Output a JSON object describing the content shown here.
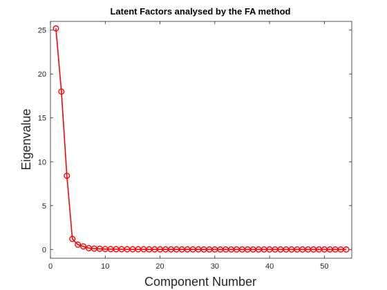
{
  "chart_data": {
    "type": "line",
    "title": "Latent Factors analysed by the FA method",
    "xlabel": "Component Number",
    "ylabel": "Eigenvalue",
    "xlim": [
      0,
      55
    ],
    "ylim": [
      -1,
      26
    ],
    "xticks": [
      0,
      10,
      20,
      30,
      40,
      50
    ],
    "yticks": [
      0,
      5,
      10,
      15,
      20,
      25
    ],
    "grid": false,
    "legend": "none",
    "series": [
      {
        "color": "#ff0000",
        "marker": "circle",
        "x": [
          1,
          2,
          3,
          4,
          5,
          6,
          7,
          8,
          9,
          10,
          11,
          12,
          13,
          14,
          15,
          16,
          17,
          18,
          19,
          20,
          21,
          22,
          23,
          24,
          25,
          26,
          27,
          28,
          29,
          30,
          31,
          32,
          33,
          34,
          35,
          36,
          37,
          38,
          39,
          40,
          41,
          42,
          43,
          44,
          45,
          46,
          47,
          48,
          49,
          50,
          51,
          52,
          53,
          54
        ],
        "values": [
          25.2,
          18.0,
          8.4,
          1.2,
          0.55,
          0.35,
          0.15,
          0.1,
          0.08,
          0.05,
          0.04,
          0.03,
          0.03,
          0.02,
          0.02,
          0.02,
          0.02,
          0.01,
          0.01,
          0.01,
          0.01,
          0.01,
          0.01,
          0.01,
          0.01,
          0.01,
          0.01,
          0,
          0,
          0,
          0,
          0,
          0,
          0,
          0,
          0,
          0,
          0,
          0,
          0,
          0,
          0,
          0,
          0,
          0,
          0,
          0,
          0,
          0,
          0,
          0,
          0,
          0,
          0
        ]
      }
    ]
  }
}
